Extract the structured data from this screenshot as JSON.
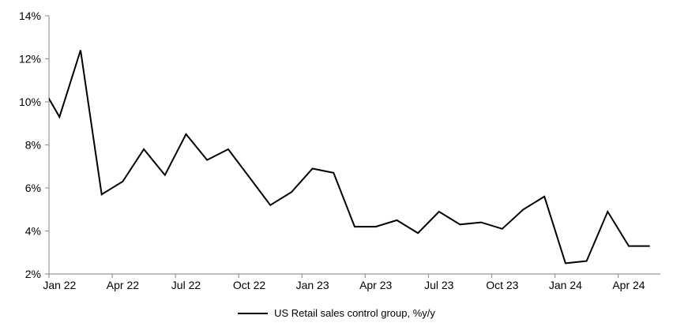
{
  "chart_data": {
    "type": "line",
    "title": "",
    "legend": "US Retail sales control group, %y/y",
    "line_color": "#000000",
    "axis_color": "#969696",
    "text_color": "#000000",
    "background_color": "#ffffff",
    "grid": false,
    "legend_position": "bottom-center",
    "ylim": [
      2,
      14
    ],
    "y_tick_step": 2,
    "y_tick_labels": [
      "2%",
      "4%",
      "6%",
      "8%",
      "10%",
      "12%",
      "14%"
    ],
    "x_tick_labels": [
      "Jan 22",
      "Apr 22",
      "Jul 22",
      "Oct 22",
      "Jan 23",
      "Apr 23",
      "Jul 23",
      "Oct 23",
      "Jan 24",
      "Apr 24"
    ],
    "x_label_every_n_points": 3,
    "clipped_leading_point": {
      "month": "Dec 21",
      "value": 11.0,
      "note": "line enters clipped at left plot edge"
    },
    "series": [
      {
        "name": "US Retail sales control group, %y/y",
        "points": [
          {
            "month": "Jan 22",
            "value": 9.3
          },
          {
            "month": "Feb 22",
            "value": 12.4
          },
          {
            "month": "Mar 22",
            "value": 5.7
          },
          {
            "month": "Apr 22",
            "value": 6.3
          },
          {
            "month": "May 22",
            "value": 7.8
          },
          {
            "month": "Jun 22",
            "value": 6.6
          },
          {
            "month": "Jul 22",
            "value": 8.5
          },
          {
            "month": "Aug 22",
            "value": 7.3
          },
          {
            "month": "Sep 22",
            "value": 7.8
          },
          {
            "month": "Oct 22",
            "value": 6.5
          },
          {
            "month": "Nov 22",
            "value": 5.2
          },
          {
            "month": "Dec 22",
            "value": 5.8
          },
          {
            "month": "Jan 23",
            "value": 6.9
          },
          {
            "month": "Feb 23",
            "value": 6.7
          },
          {
            "month": "Mar 23",
            "value": 4.2
          },
          {
            "month": "Apr 23",
            "value": 4.2
          },
          {
            "month": "May 23",
            "value": 4.5
          },
          {
            "month": "Jun 23",
            "value": 3.9
          },
          {
            "month": "Jul 23",
            "value": 4.9
          },
          {
            "month": "Aug 23",
            "value": 4.3
          },
          {
            "month": "Sep 23",
            "value": 4.4
          },
          {
            "month": "Oct 23",
            "value": 4.1
          },
          {
            "month": "Nov 23",
            "value": 5.0
          },
          {
            "month": "Dec 23",
            "value": 5.6
          },
          {
            "month": "Jan 24",
            "value": 2.5
          },
          {
            "month": "Feb 24",
            "value": 2.6
          },
          {
            "month": "Mar 24",
            "value": 4.9
          },
          {
            "month": "Apr 24",
            "value": 3.3
          },
          {
            "month": "May 24",
            "value": 3.3
          }
        ]
      }
    ]
  }
}
